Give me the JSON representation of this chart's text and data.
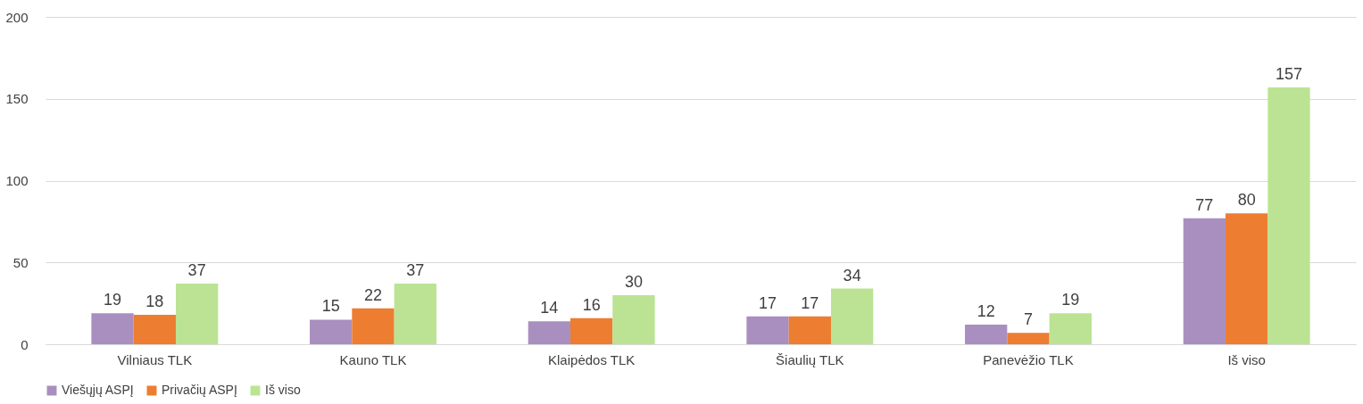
{
  "chart_data": {
    "type": "bar",
    "categories": [
      "Vilniaus TLK",
      "Kauno TLK",
      "Klaipėdos TLK",
      "Šiaulių TLK",
      "Panevėžio TLK",
      "Iš viso"
    ],
    "series": [
      {
        "name": "Viešųjų ASPĮ",
        "color": "#a98fbf",
        "values": [
          19,
          15,
          14,
          17,
          12,
          77
        ]
      },
      {
        "name": "Privačių ASPĮ",
        "color": "#ed7d31",
        "values": [
          18,
          22,
          16,
          17,
          7,
          80
        ]
      },
      {
        "name": "Iš viso",
        "color": "#bbe393",
        "values": [
          37,
          37,
          30,
          34,
          19,
          157
        ]
      }
    ],
    "ylim": [
      0,
      200
    ],
    "yticks": [
      0,
      50,
      100,
      150,
      200
    ],
    "grid": "y",
    "legend": "bottom",
    "data_labels": true
  }
}
